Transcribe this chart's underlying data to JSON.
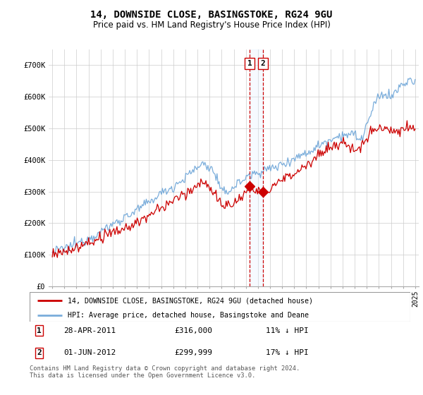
{
  "title": "14, DOWNSIDE CLOSE, BASINGSTOKE, RG24 9GU",
  "subtitle": "Price paid vs. HM Land Registry's House Price Index (HPI)",
  "legend_label_red": "14, DOWNSIDE CLOSE, BASINGSTOKE, RG24 9GU (detached house)",
  "legend_label_blue": "HPI: Average price, detached house, Basingstoke and Deane",
  "transaction1_date": "28-APR-2011",
  "transaction1_price": "£316,000",
  "transaction1_hpi": "11% ↓ HPI",
  "transaction2_date": "01-JUN-2012",
  "transaction2_price": "£299,999",
  "transaction2_hpi": "17% ↓ HPI",
  "footer": "Contains HM Land Registry data © Crown copyright and database right 2024.\nThis data is licensed under the Open Government Licence v3.0.",
  "ylim": [
    0,
    750000
  ],
  "yticks": [
    0,
    100000,
    200000,
    300000,
    400000,
    500000,
    600000,
    700000
  ],
  "ytick_labels": [
    "£0",
    "£100K",
    "£200K",
    "£300K",
    "£400K",
    "£500K",
    "£600K",
    "£700K"
  ],
  "color_red": "#cc0000",
  "color_blue": "#7aaddb",
  "color_grid": "#cccccc",
  "color_vline": "#cc0000",
  "color_vshade": "#ddeeff",
  "background_color": "#ffffff",
  "transaction1_year": 2011.32,
  "transaction2_year": 2012.42,
  "transaction1_price_val": 316000,
  "transaction2_price_val": 299999,
  "xlim_left": 1994.7,
  "xlim_right": 2025.3
}
